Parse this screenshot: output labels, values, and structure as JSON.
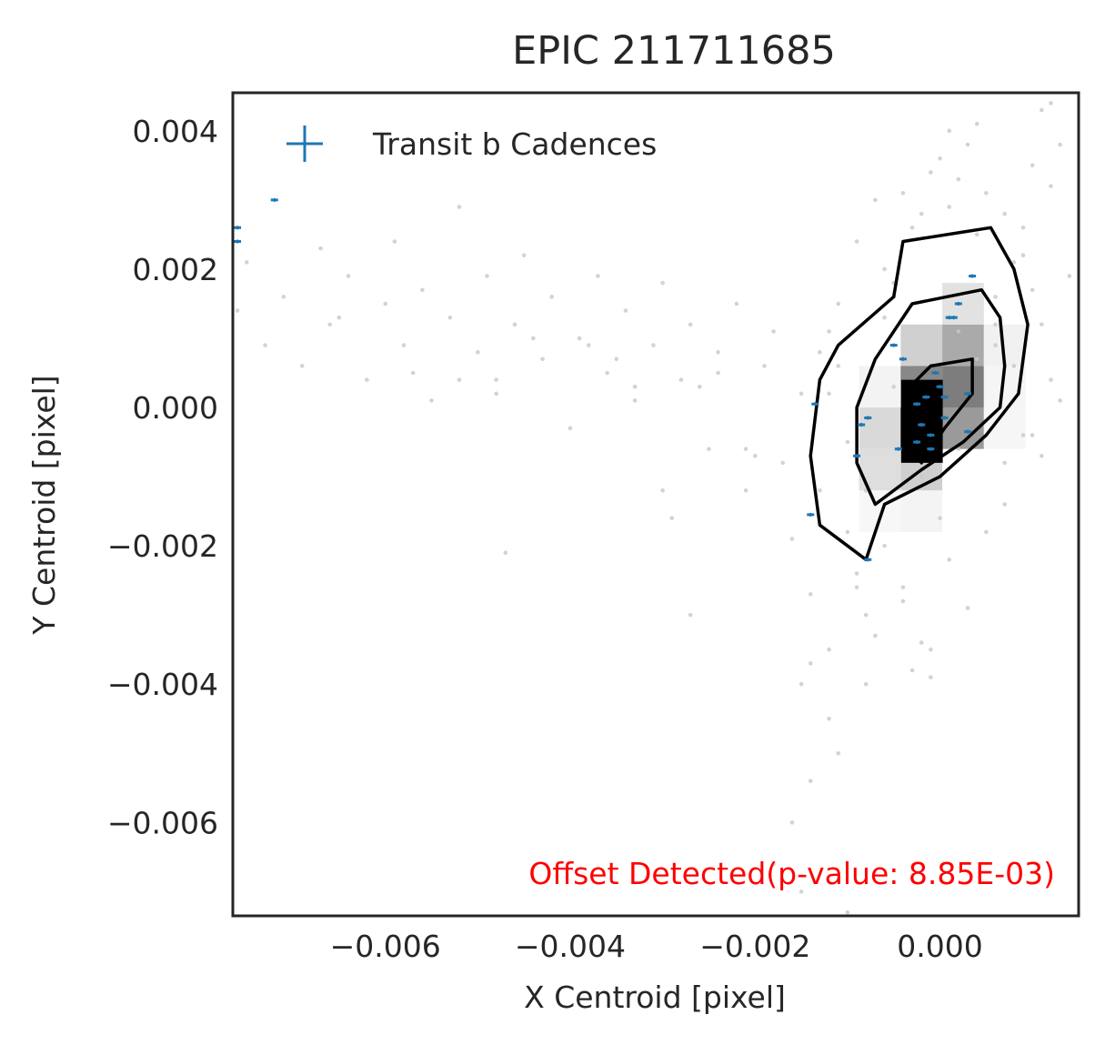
{
  "chart_data": {
    "type": "scatter",
    "title": "EPIC 211711685",
    "xlabel": "X Centroid [pixel]",
    "ylabel": "Y Centroid [pixel]",
    "xlim": [
      -0.00765,
      0.0015
    ],
    "ylim": [
      -0.00735,
      0.00455
    ],
    "xticks": [
      -0.006,
      -0.004,
      -0.002,
      0.0
    ],
    "xtick_labels": [
      "−0.006",
      "−0.004",
      "−0.002",
      "0.000"
    ],
    "yticks": [
      0.004,
      0.002,
      0.0,
      -0.002,
      -0.004,
      -0.006
    ],
    "ytick_labels": [
      "0.004",
      "0.002",
      "0.000",
      "−0.002",
      "−0.004",
      "−0.006"
    ],
    "grid": false,
    "legend": {
      "placement": "top-left",
      "entries": [
        {
          "label": "Transit b Cadences",
          "marker": "+",
          "color": "#1f77b4"
        }
      ]
    },
    "annotation": {
      "text": "Offset Detected(p-value: 8.85E-03)",
      "color": "#ff0000",
      "placement": "bottom-right"
    },
    "series": [
      {
        "name": "Transit b Cadences",
        "color": "#1f77b4",
        "x": [
          -0.0076,
          -0.0076,
          -0.0072,
          -0.00135,
          -0.0014,
          -0.0009,
          -0.00085,
          -0.00078,
          -0.00078,
          -0.0005,
          -0.00045,
          -0.0004,
          -0.00025,
          -0.00025,
          -0.0002,
          -0.00015,
          -0.0001,
          -0.0001,
          -5e-05,
          0.0,
          5e-05,
          5e-05,
          0.0001,
          0.00015,
          0.0002,
          0.0003,
          0.0003,
          0.00035
        ],
        "y": [
          0.0026,
          0.0024,
          0.003,
          5e-05,
          -0.00155,
          -0.0007,
          -0.00025,
          -0.00015,
          -0.0022,
          0.0009,
          -0.0006,
          0.0007,
          5e-05,
          -0.0005,
          -0.00025,
          0.00015,
          -0.0004,
          -0.0006,
          0.0005,
          0.0003,
          0.00015,
          -0.00015,
          0.0013,
          0.0013,
          0.0015,
          0.0002,
          -0.00035,
          0.0019
        ]
      }
    ],
    "background_points": {
      "color": "#c8c8c8",
      "x": [
        -0.0076,
        -0.0075,
        -0.0073,
        -0.0071,
        -0.0069,
        -0.0067,
        -0.0066,
        -0.0064,
        -0.0062,
        -0.006,
        -0.0059,
        -0.0058,
        -0.0056,
        -0.0055,
        -0.0053,
        -0.0052,
        -0.005,
        -0.0049,
        -0.0048,
        -0.0046,
        -0.0045,
        -0.0043,
        -0.0042,
        -0.004,
        -0.0039,
        -0.0037,
        -0.0036,
        -0.0034,
        -0.0033,
        -0.0031,
        -0.003,
        -0.0028,
        -0.0027,
        -0.0025,
        -0.0024,
        -0.0022,
        -0.0021,
        -0.0019,
        -0.0018,
        -0.0016,
        -0.0015,
        -0.0014,
        -0.0013,
        -0.0012,
        -0.0011,
        -0.001,
        -0.0009,
        -0.0008,
        -0.0007,
        -0.0006,
        -0.0005,
        -0.0004,
        -0.0003,
        -0.0002,
        -0.0001,
        0.0,
        0.0001,
        0.0002,
        0.0003,
        0.0004,
        0.0005,
        0.0006,
        0.0007,
        0.0008,
        0.0009,
        0.001,
        0.0011,
        0.0012,
        0.0013,
        0.0014,
        -0.0052,
        -0.0044,
        -0.0035,
        -0.0026,
        -0.0017,
        -0.0012,
        -0.0009,
        -0.0006,
        -0.0004,
        -0.0002,
        0.0001,
        0.0004,
        0.0007,
        0.001,
        0.0012,
        -0.0065,
        -0.0057,
        -0.0048,
        -0.0038,
        -0.0029,
        -0.0021,
        -0.0011,
        -0.0008,
        -0.0005,
        -0.0001,
        0.0002,
        0.0005,
        0.0008,
        0.0011,
        0.0013,
        -0.0015,
        -0.0012,
        -0.0009,
        -0.0006,
        -0.0003,
        0.0,
        0.0003,
        0.0006,
        0.0009,
        0.0011,
        -0.001,
        -0.0007,
        -0.0004,
        -0.0001,
        0.0002,
        0.0004,
        0.0007,
        0.001,
        -0.0013,
        -0.0008,
        -0.0005,
        -0.0002,
        0.0001,
        0.0006,
        0.0009,
        0.0012,
        -0.0014,
        -0.0011,
        -0.0016,
        -0.0018,
        -0.0015,
        -0.0014,
        -0.0012,
        -0.001,
        -0.002,
        -0.0024,
        -0.0027,
        -0.003,
        -0.0033,
        -0.0047
      ],
      "y": [
        0.0014,
        0.0021,
        0.0009,
        0.0016,
        0.0006,
        0.0023,
        0.0012,
        0.0019,
        0.0004,
        0.0015,
        0.0024,
        0.0009,
        0.0017,
        0.0001,
        0.0013,
        0.0029,
        0.0008,
        0.0019,
        0.0004,
        0.0012,
        0.0022,
        0.0007,
        0.0016,
        -0.0003,
        0.001,
        0.0019,
        0.0005,
        0.0014,
        0.0001,
        0.0009,
        0.0018,
        0.0004,
        0.0012,
        -0.0006,
        0.0008,
        0.0015,
        -0.0012,
        0.0006,
        0.0011,
        -0.0019,
        0.0002,
        -0.0027,
        0.0008,
        -0.0035,
        0.0015,
        -0.0005,
        0.0024,
        -0.0012,
        0.003,
        -0.002,
        0.0018,
        -0.0028,
        0.0026,
        -0.001,
        0.0034,
        -0.0016,
        0.0029,
        -0.0006,
        0.0038,
        0.0007,
        0.0031,
        0.0016,
        0.0028,
        0.0006,
        0.0022,
        -0.0004,
        0.0012,
        0.0032,
        0.0001,
        0.0019,
        0.0004,
        0.001,
        0.0007,
        0.0003,
        -0.0008,
        0.0011,
        -0.0024,
        0.002,
        -0.0026,
        0.0028,
        -0.0022,
        0.0025,
        -0.0014,
        0.0017,
        0.0004,
        0.0013,
        0.0005,
        0.0002,
        0.0009,
        -0.0016,
        -0.0006,
        0.0006,
        -0.003,
        0.0003,
        -0.0035,
        0.0033,
        -0.0018,
        0.0021,
        -0.0007,
        0.0038,
        -0.004,
        0.0002,
        -0.0026,
        0.0013,
        -0.0038,
        0.0036,
        -0.0029,
        0.0009,
        0.0026,
        0.0043,
        -0.0018,
        -0.0033,
        0.0031,
        -0.0039,
        0.0011,
        0.0041,
        -0.0008,
        0.0035,
        -0.0012,
        -0.004,
        0.0016,
        -0.0034,
        0.004,
        0.0012,
        -0.0004,
        0.0044,
        -0.0037,
        -0.005,
        -0.006,
        -0.0066,
        -0.007,
        -0.0054,
        -0.0045,
        -0.0073,
        -0.0007,
        0.0005,
        -0.003,
        -0.0012,
        0.0003,
        -0.0021
      ]
    },
    "density_contours": 3
  }
}
